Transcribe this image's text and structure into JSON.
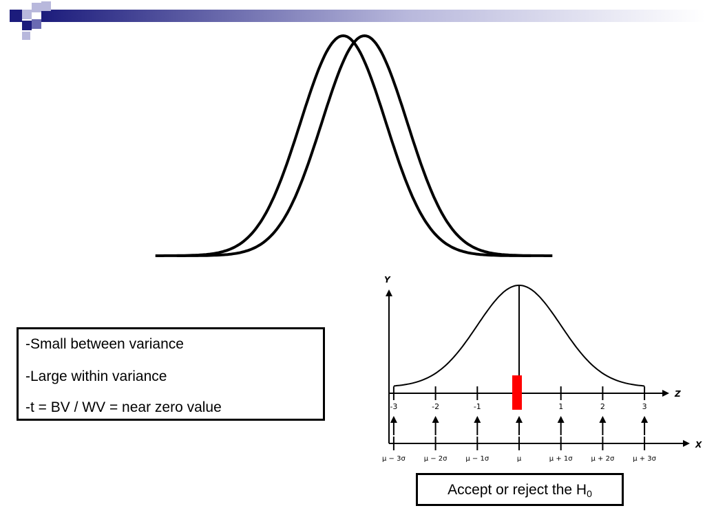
{
  "theme": {
    "ink": "#000000",
    "accent_dark": "#1c1c7c",
    "accent_mid": "#6a6ab2",
    "accent_light": "#b8b8dc",
    "highlight": "#ff0000"
  },
  "text_box": {
    "lines": [
      "-Small between variance",
      "-Large within variance",
      "-t = BV / WV = near zero value"
    ]
  },
  "caption": {
    "text": "Accept or reject the H",
    "subscript": "0"
  },
  "chart_data": [
    {
      "type": "line",
      "series": [
        {
          "shape": "normal-curve",
          "mean": -0.25
        },
        {
          "shape": "normal-curve",
          "mean": 0.25
        }
      ]
    },
    {
      "type": "line",
      "y_axis_label": "Y",
      "z_axis_label": "Z",
      "x_axis_label": "X",
      "z_ticks": [
        "-3",
        "-2",
        "-1",
        "1",
        "2",
        "3"
      ],
      "x_ticks": [
        "μ − 3σ",
        "μ − 2σ",
        "μ − 1σ",
        "μ",
        "μ + 1σ",
        "μ + 2σ",
        "μ + 3σ"
      ],
      "z_range": [
        -3,
        3
      ],
      "marked_value": 0
    }
  ]
}
